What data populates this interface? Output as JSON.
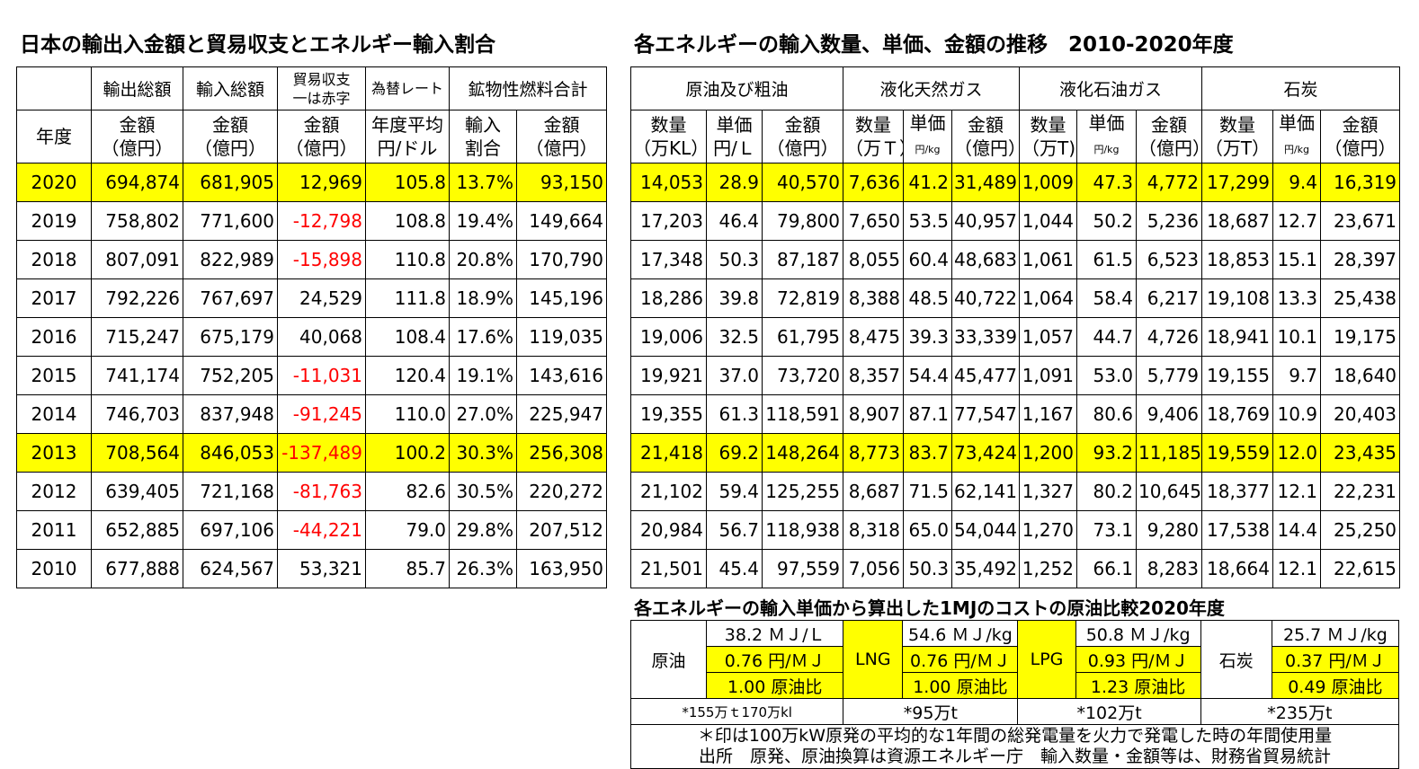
{
  "title_left": "日本の輸出入金額と貿易収支とエネルギー輸入割合",
  "title_right": "各エネルギーの輸入数量、単価、金額の推移　2010-2020年度",
  "title_bottom": "各エネルギーの輸入単価から算出した1MJのコストの原油比較2020年度",
  "trade": {
    "header1": [
      "輸出総額",
      "輸入総額",
      "貿易収支",
      "一は赤字",
      "為替レート",
      "鉱物性燃料合計"
    ],
    "header2": {
      "year": "年度",
      "amount": "金額",
      "unit_oku": "（億円）",
      "rate1": "年度平均",
      "rate2": "円/ドル",
      "share1": "輸入",
      "share2": "割合"
    },
    "rows": [
      {
        "year": "2020",
        "exp": "694,874",
        "imp": "681,905",
        "bal": "12,969",
        "rate": "105.8",
        "share": "13.7%",
        "fuel": "93,150"
      },
      {
        "year": "2019",
        "exp": "758,802",
        "imp": "771,600",
        "bal": "-12,798",
        "rate": "108.8",
        "share": "19.4%",
        "fuel": "149,664"
      },
      {
        "year": "2018",
        "exp": "807,091",
        "imp": "822,989",
        "bal": "-15,898",
        "rate": "110.8",
        "share": "20.8%",
        "fuel": "170,790"
      },
      {
        "year": "2017",
        "exp": "792,226",
        "imp": "767,697",
        "bal": "24,529",
        "rate": "111.8",
        "share": "18.9%",
        "fuel": "145,196"
      },
      {
        "year": "2016",
        "exp": "715,247",
        "imp": "675,179",
        "bal": "40,068",
        "rate": "108.4",
        "share": "17.6%",
        "fuel": "119,035"
      },
      {
        "year": "2015",
        "exp": "741,174",
        "imp": "752,205",
        "bal": "-11,031",
        "rate": "120.4",
        "share": "19.1%",
        "fuel": "143,616"
      },
      {
        "year": "2014",
        "exp": "746,703",
        "imp": "837,948",
        "bal": "-91,245",
        "rate": "110.0",
        "share": "27.0%",
        "fuel": "225,947"
      },
      {
        "year": "2013",
        "exp": "708,564",
        "imp": "846,053",
        "bal": "-137,489",
        "rate": "100.2",
        "share": "30.3%",
        "fuel": "256,308"
      },
      {
        "year": "2012",
        "exp": "639,405",
        "imp": "721,168",
        "bal": "-81,763",
        "rate": "82.6",
        "share": "30.5%",
        "fuel": "220,272"
      },
      {
        "year": "2011",
        "exp": "652,885",
        "imp": "697,106",
        "bal": "-44,221",
        "rate": "79.0",
        "share": "29.8%",
        "fuel": "207,512"
      },
      {
        "year": "2010",
        "exp": "677,888",
        "imp": "624,567",
        "bal": "53,321",
        "rate": "85.7",
        "share": "26.3%",
        "fuel": "163,950"
      }
    ]
  },
  "energy": {
    "groups": [
      "原油及び粗油",
      "液化天然ガス",
      "液化石油ガス",
      "石炭"
    ],
    "header2": {
      "qty": "数量",
      "price": "単価",
      "amount": "金額",
      "kl": "（万KL）",
      "yen_l": "円/Ｌ",
      "oku": "（億円）",
      "man_t": "（万Ｔ）",
      "man_t2": "（万T)",
      "man_t3": "（万T）",
      "yen_kg": "円/kg"
    },
    "rows": [
      {
        "oq": "14,053",
        "op": "28.9",
        "oa": "40,570",
        "lq": "7,636",
        "lp": "41.2",
        "la": "31,489",
        "pq": "1,009",
        "pp": "47.3",
        "pa": "4,772",
        "cq": "17,299",
        "cp": "9.4",
        "ca": "16,319"
      },
      {
        "oq": "17,203",
        "op": "46.4",
        "oa": "79,800",
        "lq": "7,650",
        "lp": "53.5",
        "la": "40,957",
        "pq": "1,044",
        "pp": "50.2",
        "pa": "5,236",
        "cq": "18,687",
        "cp": "12.7",
        "ca": "23,671"
      },
      {
        "oq": "17,348",
        "op": "50.3",
        "oa": "87,187",
        "lq": "8,055",
        "lp": "60.4",
        "la": "48,683",
        "pq": "1,061",
        "pp": "61.5",
        "pa": "6,523",
        "cq": "18,853",
        "cp": "15.1",
        "ca": "28,397"
      },
      {
        "oq": "18,286",
        "op": "39.8",
        "oa": "72,819",
        "lq": "8,388",
        "lp": "48.5",
        "la": "40,722",
        "pq": "1,064",
        "pp": "58.4",
        "pa": "6,217",
        "cq": "19,108",
        "cp": "13.3",
        "ca": "25,438"
      },
      {
        "oq": "19,006",
        "op": "32.5",
        "oa": "61,795",
        "lq": "8,475",
        "lp": "39.3",
        "la": "33,339",
        "pq": "1,057",
        "pp": "44.7",
        "pa": "4,726",
        "cq": "18,941",
        "cp": "10.1",
        "ca": "19,175"
      },
      {
        "oq": "19,921",
        "op": "37.0",
        "oa": "73,720",
        "lq": "8,357",
        "lp": "54.4",
        "la": "45,477",
        "pq": "1,091",
        "pp": "53.0",
        "pa": "5,779",
        "cq": "19,155",
        "cp": "9.7",
        "ca": "18,640"
      },
      {
        "oq": "19,355",
        "op": "61.3",
        "oa": "118,591",
        "lq": "8,907",
        "lp": "87.1",
        "la": "77,547",
        "pq": "1,167",
        "pp": "80.6",
        "pa": "9,406",
        "cq": "18,769",
        "cp": "10.9",
        "ca": "20,403"
      },
      {
        "oq": "21,418",
        "op": "69.2",
        "oa": "148,264",
        "lq": "8,773",
        "lp": "83.7",
        "la": "73,424",
        "pq": "1,200",
        "pp": "93.2",
        "pa": "11,185",
        "cq": "19,559",
        "cp": "12.0",
        "ca": "23,435"
      },
      {
        "oq": "21,102",
        "op": "59.4",
        "oa": "125,255",
        "lq": "8,687",
        "lp": "71.5",
        "la": "62,141",
        "pq": "1,327",
        "pp": "80.2",
        "pa": "10,645",
        "cq": "18,377",
        "cp": "12.1",
        "ca": "22,231"
      },
      {
        "oq": "20,984",
        "op": "56.7",
        "oa": "118,938",
        "lq": "8,318",
        "lp": "65.0",
        "la": "54,044",
        "pq": "1,270",
        "pp": "73.1",
        "pa": "9,280",
        "cq": "17,538",
        "cp": "14.4",
        "ca": "25,250"
      },
      {
        "oq": "21,501",
        "op": "45.4",
        "oa": "97,559",
        "lq": "7,056",
        "lp": "50.3",
        "la": "35,492",
        "pq": "1,252",
        "pp": "66.1",
        "pa": "8,283",
        "cq": "18,664",
        "cp": "12.1",
        "ca": "22,615"
      }
    ]
  },
  "cost": {
    "crude": {
      "label": "原油",
      "mj": "38.2 ＭＪ/Ｌ",
      "yen": "0.76 円/ＭＪ",
      "ratio": "1.00 原油比",
      "note": "*155万ｔ170万kl"
    },
    "lng": {
      "label": "LNG",
      "mj": "54.6 ＭＪ/kg",
      "yen": "0.76 円/ＭＪ",
      "ratio": "1.00 原油比",
      "note": "*95万t"
    },
    "lpg": {
      "label": "LPG",
      "mj": "50.8 ＭＪ/kg",
      "yen": "0.93 円/ＭＪ",
      "ratio": "1.23 原油比",
      "note": "*102万t"
    },
    "coal": {
      "label": "石炭",
      "mj": "25.7 ＭＪ/kg",
      "yen": "0.37 円/ＭＪ",
      "ratio": "0.49 原油比",
      "note": "*235万t"
    },
    "footnote1": "＊印は100万kW原発の平均的な1年間の総発電量を火力で発電した時の年間使用量",
    "footnote2": "出所　原発、原油換算は資源エネルギー庁　輸入数量・金額等は、財務省貿易統計"
  },
  "colors": {
    "highlight": "#ffff00",
    "negative": "#ff0000"
  }
}
